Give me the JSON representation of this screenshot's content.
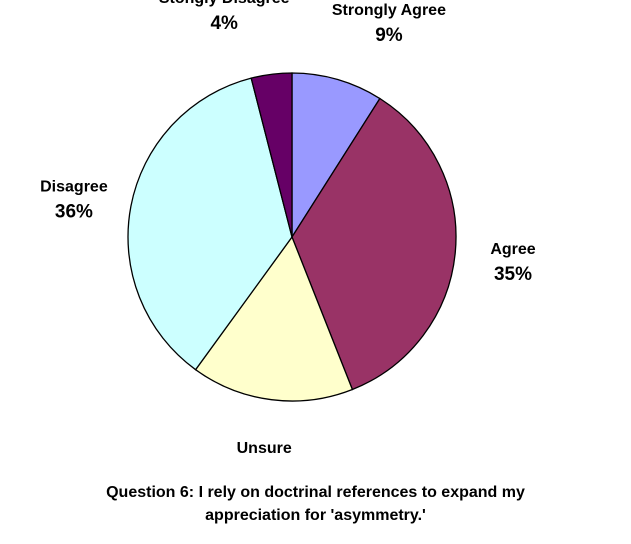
{
  "chart_data": {
    "type": "pie",
    "title": "Question 6:  I rely on doctrinal references to expand my appreciation for 'asymmetry.'",
    "title_lines": [
      "Question 6:  I rely on doctrinal references to expand my",
      "appreciation for 'asymmetry.'"
    ],
    "slices": [
      {
        "label": "Strongly Agree",
        "value": 9,
        "value_label": "9%",
        "color": "#9999ff"
      },
      {
        "label": "Agree",
        "value": 35,
        "value_label": "35%",
        "color": "#993366"
      },
      {
        "label": "Unsure",
        "value": 16,
        "value_label": "16%",
        "color": "#ffffcc"
      },
      {
        "label": "Disagree",
        "value": 36,
        "value_label": "36%",
        "color": "#ccffff"
      },
      {
        "label": "Stongly Disagree",
        "value": 4,
        "value_label": "4%",
        "color": "#660066"
      }
    ],
    "start_angle_deg": 0,
    "direction": "clockwise",
    "legend": "none",
    "stroke_color": "#000000"
  }
}
